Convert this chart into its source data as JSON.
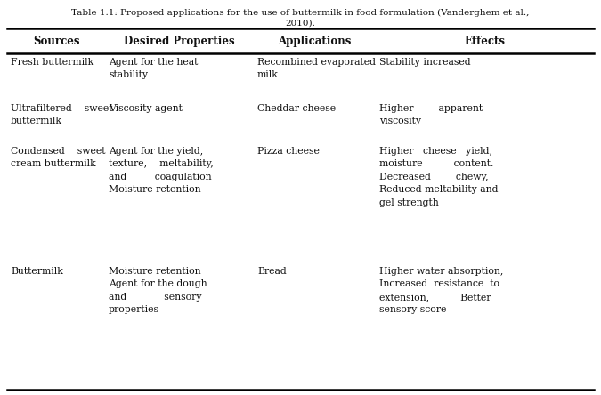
{
  "title": "Table 1.1: Proposed applications for the use of buttermilk in food formulation (Vanderghem et al.,\n2010).",
  "headers": [
    "Sources",
    "Desired Properties",
    "Applications",
    "Effects"
  ],
  "rows": [
    {
      "source": "Fresh buttermilk",
      "desired": "Agent for the heat\nstability",
      "applications": "Recombined evaporated\nmilk",
      "effects": "Stability increased"
    },
    {
      "source": "Ultrafiltered    sweet\nbuttermilk",
      "desired": "Viscosity agent",
      "applications": "Cheddar cheese",
      "effects": "Higher        apparent\nviscosity"
    },
    {
      "source": "Condensed    sweet\ncream buttermilk",
      "desired": "Agent for the yield,\ntexture,    meltability,\nand         coagulation\nMoisture retention",
      "applications": "Pizza cheese",
      "effects": "Higher   cheese   yield,\nmoisture          content.\nDecreased        chewy,\nReduced meltability and\ngel strength"
    },
    {
      "source": "Buttermilk",
      "desired": "Moisture retention\nAgent for the dough\nand            sensory\nproperties",
      "applications": "Bread",
      "effects": "Higher water absorption,\nIncreased  resistance  to\nextension,          Better\nsensory score"
    }
  ],
  "bg_color": "#ffffff",
  "text_color": "#111111",
  "fontsize": 7.8,
  "header_fontsize": 8.5,
  "title_fontsize": 7.5
}
